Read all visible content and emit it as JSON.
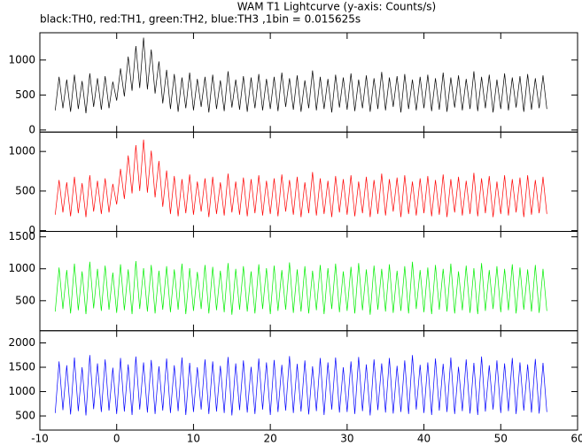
{
  "chart_data": {
    "type": "line",
    "title": "WAM T1 Lightcurve (y-axis: Counts/s)",
    "subtitle": "black:TH0, red:TH1, green:TH2, blue:TH3 ,1bin = 0.015625s",
    "xlim": [
      -10,
      60
    ],
    "xticks": [
      -10,
      0,
      10,
      20,
      30,
      40,
      50,
      60
    ],
    "x": [
      -8,
      -7.5,
      -7,
      -6.5,
      -6,
      -5.5,
      -5,
      -4.5,
      -4,
      -3.5,
      -3,
      -2.5,
      -2,
      -1.5,
      -1,
      -0.5,
      0,
      0.5,
      1,
      1.5,
      2,
      2.5,
      3,
      3.5,
      4,
      4.5,
      5,
      5.5,
      6,
      6.5,
      7,
      7.5,
      8,
      8.5,
      9,
      9.5,
      10,
      10.5,
      11,
      11.5,
      12,
      12.5,
      13,
      13.5,
      14,
      14.5,
      15,
      15.5,
      16,
      16.5,
      17,
      17.5,
      18,
      18.5,
      19,
      19.5,
      20,
      20.5,
      21,
      21.5,
      22,
      22.5,
      23,
      23.5,
      24,
      24.5,
      25,
      25.5,
      26,
      26.5,
      27,
      27.5,
      28,
      28.5,
      29,
      29.5,
      30,
      30.5,
      31,
      31.5,
      32,
      32.5,
      33,
      33.5,
      34,
      34.5,
      35,
      35.5,
      36,
      36.5,
      37,
      37.5,
      38,
      38.5,
      39,
      39.5,
      40,
      40.5,
      41,
      41.5,
      42,
      42.5,
      43,
      43.5,
      44,
      44.5,
      45,
      45.5,
      46,
      46.5,
      47,
      47.5,
      48,
      48.5,
      49,
      49.5,
      50,
      50.5,
      51,
      51.5,
      52,
      52.5,
      53,
      53.5,
      54,
      54.5,
      55,
      55.5,
      56
    ],
    "series": [
      {
        "color": "#000000",
        "ylim": [
          -30,
          1390
        ],
        "yticks": [
          0,
          500,
          1000
        ],
        "values": [
          280,
          760,
          310,
          720,
          260,
          790,
          300,
          700,
          240,
          810,
          330,
          740,
          290,
          770,
          310,
          690,
          420,
          880,
          480,
          1050,
          560,
          1200,
          600,
          1320,
          580,
          1150,
          520,
          980,
          380,
          860,
          300,
          800,
          260,
          750,
          310,
          820,
          280,
          730,
          330,
          760,
          250,
          790,
          300,
          710,
          270,
          840,
          320,
          720,
          290,
          770,
          260,
          750,
          310,
          800,
          280,
          730,
          300,
          760,
          270,
          820,
          330,
          740,
          290,
          780,
          260,
          710,
          310,
          850,
          280,
          760,
          300,
          730,
          250,
          790,
          320,
          750,
          290,
          810,
          270,
          720,
          310,
          780,
          260,
          740,
          300,
          830,
          280,
          750,
          330,
          770,
          250,
          800,
          300,
          720,
          280,
          760,
          310,
          790,
          270,
          740,
          290,
          820,
          260,
          750,
          320,
          780,
          280,
          730,
          300,
          840,
          270,
          760,
          310,
          790,
          250,
          720,
          300,
          810,
          280,
          750,
          320,
          770,
          260,
          800,
          290,
          740,
          310,
          780,
          300
        ]
      },
      {
        "color": "#ff0000",
        "ylim": [
          -10,
          1245
        ],
        "yticks": [
          0,
          500,
          1000
        ],
        "values": [
          200,
          640,
          230,
          610,
          180,
          680,
          220,
          600,
          170,
          700,
          240,
          630,
          210,
          660,
          230,
          590,
          330,
          780,
          400,
          950,
          470,
          1080,
          500,
          1150,
          480,
          1010,
          420,
          880,
          300,
          760,
          210,
          690,
          180,
          650,
          220,
          710,
          200,
          620,
          240,
          660,
          170,
          680,
          210,
          610,
          190,
          720,
          230,
          620,
          200,
          670,
          180,
          650,
          220,
          700,
          190,
          630,
          210,
          660,
          180,
          710,
          240,
          640,
          200,
          680,
          170,
          610,
          220,
          740,
          190,
          660,
          210,
          630,
          170,
          690,
          230,
          650,
          200,
          700,
          180,
          620,
          220,
          680,
          170,
          640,
          210,
          720,
          190,
          650,
          240,
          670,
          170,
          700,
          210,
          620,
          190,
          660,
          220,
          690,
          180,
          640,
          200,
          710,
          170,
          650,
          230,
          680,
          190,
          630,
          210,
          730,
          180,
          660,
          220,
          690,
          170,
          620,
          210,
          700,
          190,
          650,
          230,
          670,
          170,
          700,
          200,
          640,
          220,
          680,
          210
        ]
      },
      {
        "color": "#00ee00",
        "ylim": [
          30,
          1585
        ],
        "yticks": [
          500,
          1000,
          1500
        ],
        "values": [
          330,
          1020,
          370,
          980,
          300,
          1080,
          350,
          960,
          290,
          1110,
          380,
          1000,
          340,
          1050,
          360,
          940,
          310,
          1070,
          350,
          990,
          290,
          1120,
          370,
          1010,
          330,
          1060,
          300,
          970,
          360,
          1040,
          320,
          990,
          360,
          1080,
          290,
          1010,
          340,
          950,
          370,
          1060,
          300,
          1030,
          350,
          970,
          320,
          1090,
          280,
          1000,
          360,
          1040,
          330,
          960,
          300,
          1070,
          370,
          1010,
          290,
          1050,
          340,
          980,
          360,
          1100,
          310,
          990,
          330,
          1040,
          300,
          970,
          350,
          1060,
          290,
          1010,
          370,
          1080,
          320,
          960,
          340,
          1030,
          300,
          1090,
          350,
          990,
          280,
          1050,
          360,
          1000,
          330,
          1070,
          310,
          970,
          340,
          1040,
          300,
          1110,
          370,
          980,
          320,
          1020,
          290,
          1060,
          360,
          1000,
          330,
          1080,
          300,
          960,
          350,
          1050,
          310,
          1010,
          290,
          1090,
          340,
          980,
          370,
          1040,
          320,
          1000,
          350,
          1070,
          300,
          1020,
          360,
          990,
          330,
          1060,
          310,
          1000,
          340
        ]
      },
      {
        "color": "#0000ff",
        "ylim": [
          210,
          2250
        ],
        "yticks": [
          500,
          1000,
          1500,
          2000
        ],
        "values": [
          560,
          1620,
          620,
          1540,
          530,
          1700,
          600,
          1500,
          510,
          1750,
          640,
          1580,
          580,
          1660,
          610,
          1490,
          540,
          1690,
          590,
          1560,
          520,
          1720,
          630,
          1600,
          570,
          1650,
          540,
          1520,
          610,
          1680,
          560,
          1540,
          600,
          1700,
          520,
          1590,
          580,
          1500,
          630,
          1660,
          540,
          1620,
          590,
          1530,
          560,
          1710,
          510,
          1580,
          620,
          1640,
          570,
          1510,
          540,
          1680,
          630,
          1600,
          520,
          1650,
          580,
          1550,
          610,
          1730,
          560,
          1570,
          590,
          1640,
          530,
          1520,
          600,
          1690,
          520,
          1600,
          630,
          1700,
          570,
          1500,
          580,
          1620,
          540,
          1710,
          600,
          1560,
          510,
          1660,
          620,
          1580,
          570,
          1690,
          550,
          1530,
          580,
          1640,
          540,
          1750,
          630,
          1550,
          560,
          1600,
          520,
          1680,
          610,
          1570,
          580,
          1700,
          540,
          1510,
          600,
          1660,
          550,
          1590,
          520,
          1720,
          590,
          1540,
          630,
          1640,
          560,
          1580,
          600,
          1690,
          540,
          1600,
          610,
          1560,
          570,
          1670,
          550,
          1590,
          580
        ]
      }
    ]
  }
}
